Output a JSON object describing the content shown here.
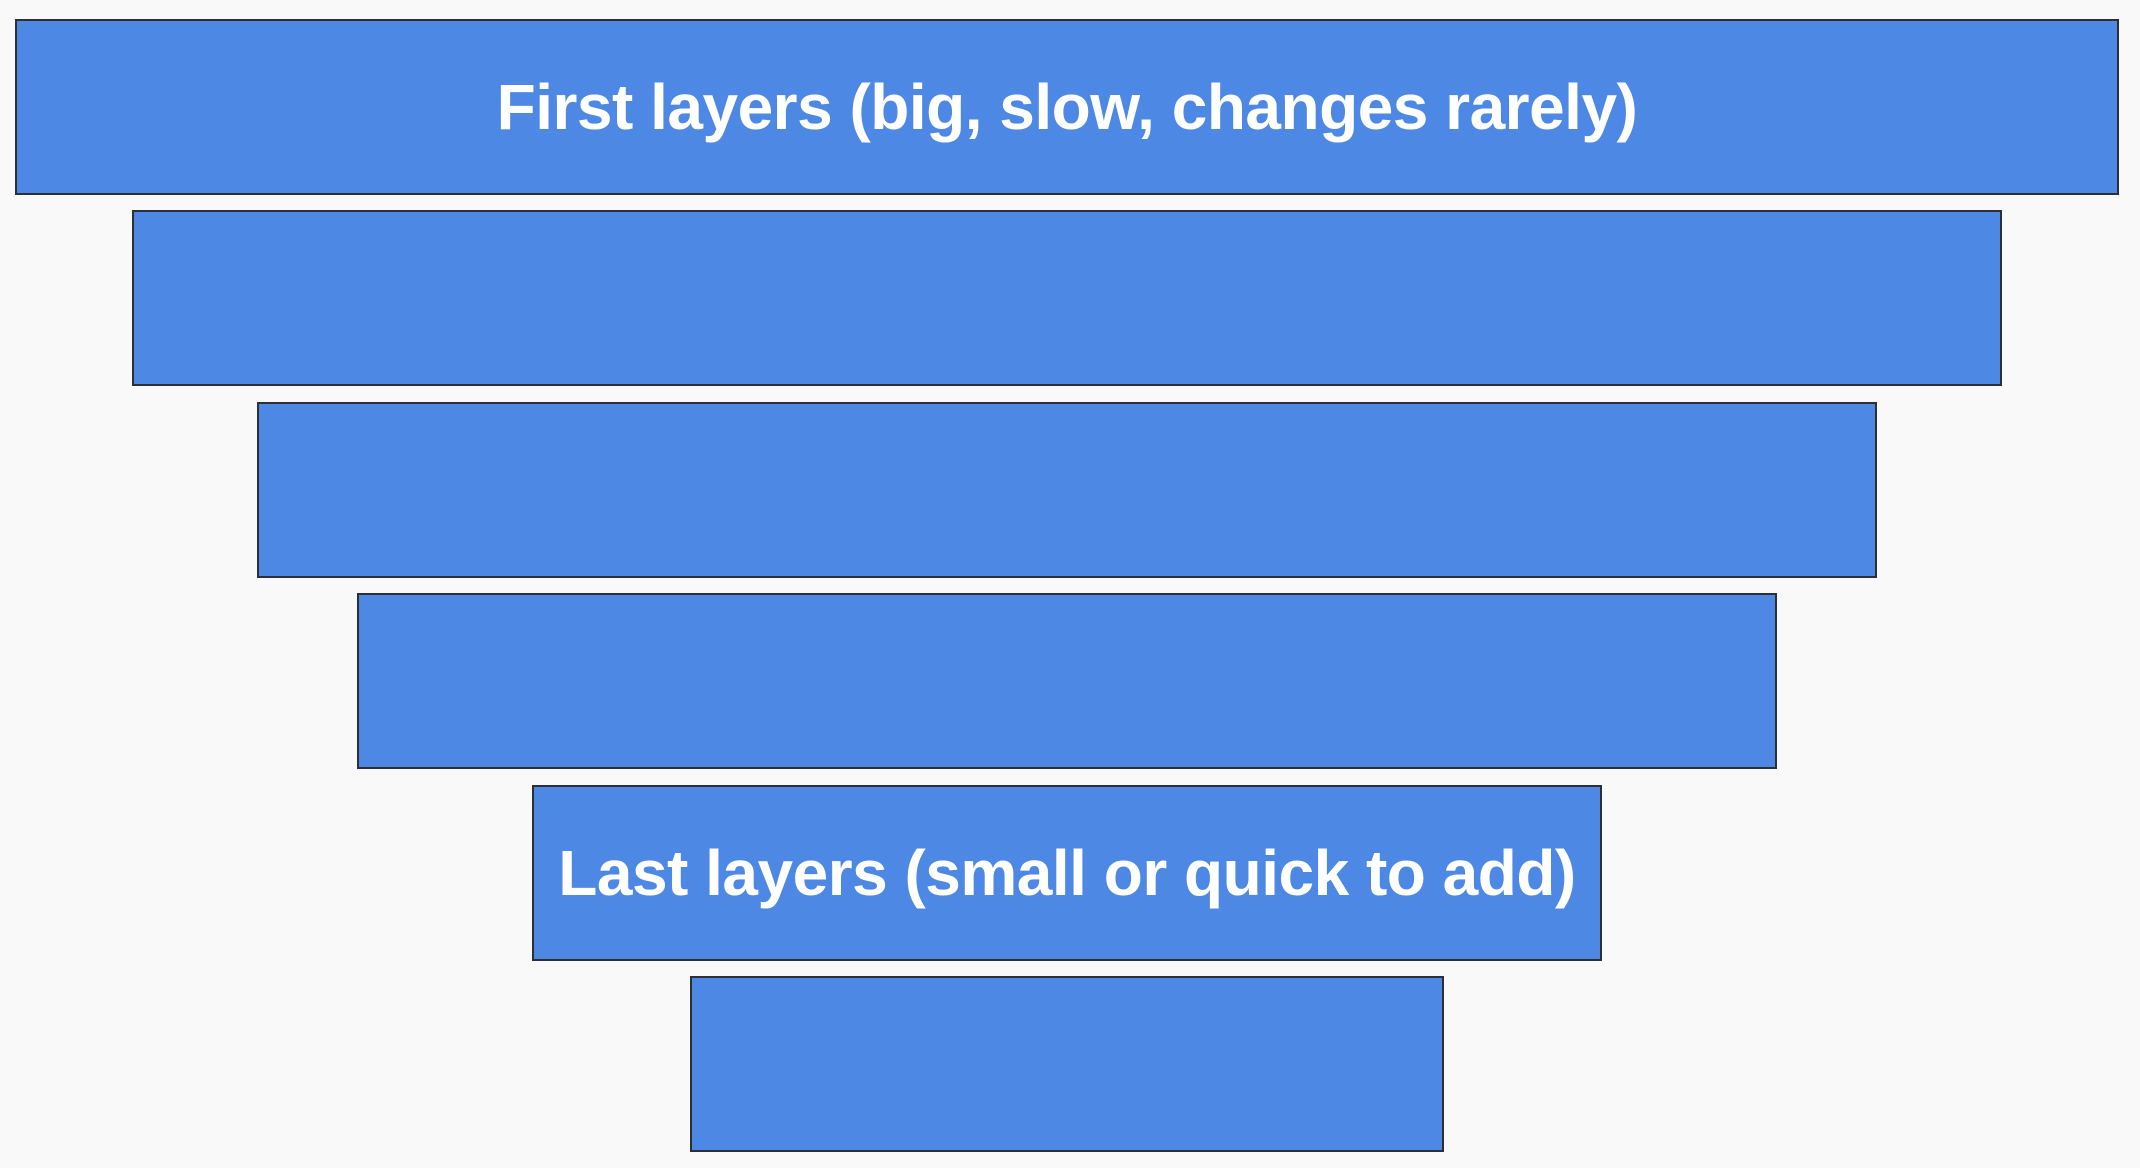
{
  "diagram": {
    "layers": [
      {
        "label": "First layers (big, slow, changes rarely)"
      },
      {
        "label": ""
      },
      {
        "label": ""
      },
      {
        "label": ""
      },
      {
        "label": "Last layers (small or quick to add)"
      },
      {
        "label": ""
      }
    ],
    "colors": {
      "layer_fill": "#4e88e5",
      "layer_border": "#2d2f33",
      "label_text": "#ffffff",
      "background": "#f9f9f9"
    }
  }
}
